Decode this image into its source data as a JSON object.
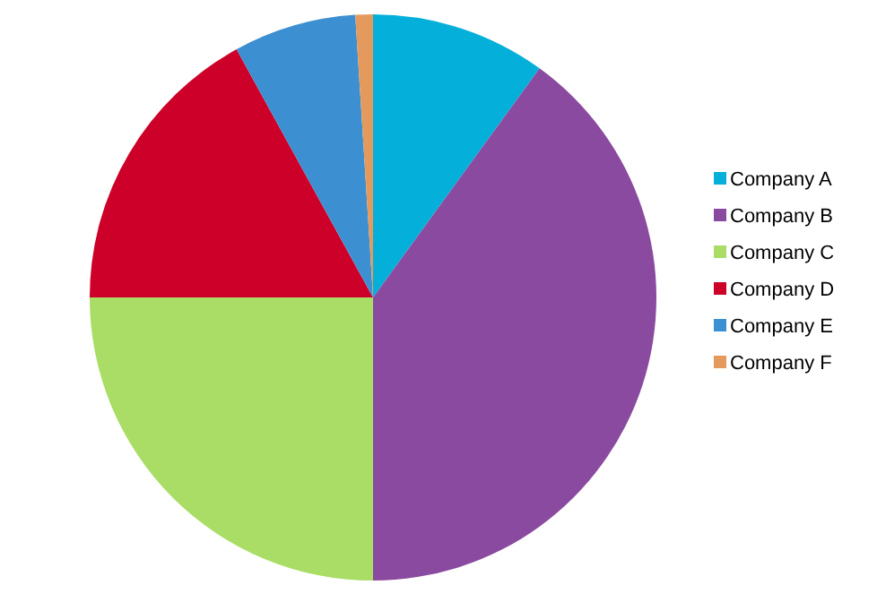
{
  "chart_data": {
    "type": "pie",
    "categories": [
      "Company A",
      "Company B",
      "Company C",
      "Company D",
      "Company E",
      "Company F"
    ],
    "values": [
      10,
      40,
      25,
      17,
      7,
      1
    ],
    "colors": [
      "#04b0da",
      "#8a4aa0",
      "#a9dd66",
      "#cc0029",
      "#3c8fd0",
      "#e39a5c"
    ],
    "legend": "right"
  }
}
